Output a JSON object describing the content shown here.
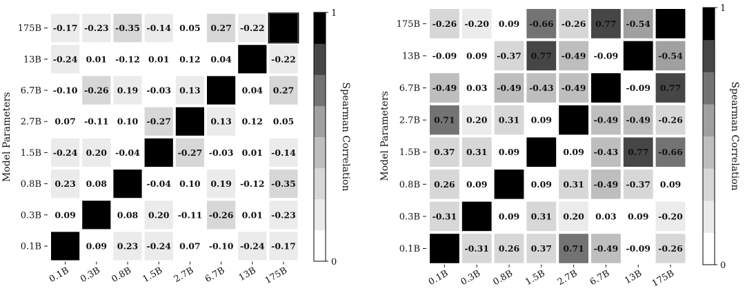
{
  "chart_data": [
    {
      "type": "heatmap",
      "ylabel": "Model Parameters",
      "xlabel": "",
      "categories": [
        "0.1B",
        "0.3B",
        "0.8B",
        "1.5B",
        "2.7B",
        "6.7B",
        "13B",
        "175B"
      ],
      "rows_top_to_bottom": [
        "175B",
        "13B",
        "6.7B",
        "2.7B",
        "1.5B",
        "0.8B",
        "0.3B",
        "0.1B"
      ],
      "values": [
        [
          -0.17,
          -0.23,
          -0.35,
          -0.14,
          0.05,
          0.27,
          -0.22,
          null
        ],
        [
          -0.24,
          0.01,
          -0.12,
          0.01,
          0.12,
          0.04,
          null,
          -0.22
        ],
        [
          -0.1,
          -0.26,
          0.19,
          -0.03,
          0.13,
          null,
          0.04,
          0.27
        ],
        [
          0.07,
          -0.11,
          0.1,
          -0.27,
          null,
          0.13,
          0.12,
          0.05
        ],
        [
          -0.24,
          0.2,
          -0.04,
          null,
          -0.27,
          -0.03,
          0.01,
          -0.14
        ],
        [
          0.23,
          0.08,
          null,
          -0.04,
          0.1,
          0.19,
          -0.12,
          -0.35
        ],
        [
          0.09,
          null,
          0.08,
          0.2,
          -0.11,
          -0.26,
          0.01,
          -0.23
        ],
        [
          null,
          0.09,
          0.23,
          -0.24,
          0.07,
          -0.1,
          -0.24,
          -0.17
        ]
      ],
      "colorbar": {
        "label": "Spearman Correlation",
        "min": 0,
        "max": 1,
        "min_label": "0",
        "max_label": "1",
        "levels": 8
      }
    },
    {
      "type": "heatmap",
      "ylabel": "Model Parameters",
      "xlabel": "",
      "categories": [
        "0.1B",
        "0.3B",
        "0.8B",
        "1.5B",
        "2.7B",
        "6.7B",
        "13B",
        "175B"
      ],
      "rows_top_to_bottom": [
        "175B",
        "13B",
        "6.7B",
        "2.7B",
        "1.5B",
        "0.8B",
        "0.3B",
        "0.1B"
      ],
      "values": [
        [
          -0.26,
          -0.2,
          0.09,
          -0.66,
          -0.26,
          0.77,
          -0.54,
          null
        ],
        [
          -0.09,
          0.09,
          -0.37,
          0.77,
          -0.49,
          -0.09,
          null,
          -0.54
        ],
        [
          -0.49,
          0.03,
          -0.49,
          -0.43,
          -0.49,
          null,
          -0.09,
          0.77
        ],
        [
          0.71,
          0.2,
          0.31,
          0.09,
          null,
          -0.49,
          -0.49,
          -0.26
        ],
        [
          0.37,
          0.31,
          0.09,
          null,
          0.09,
          -0.43,
          0.77,
          -0.66
        ],
        [
          0.26,
          0.09,
          null,
          0.09,
          0.31,
          -0.49,
          -0.37,
          0.09
        ],
        [
          -0.31,
          null,
          0.09,
          0.31,
          0.2,
          0.03,
          0.09,
          -0.2
        ],
        [
          null,
          -0.31,
          0.26,
          0.37,
          0.71,
          -0.49,
          -0.09,
          -0.26
        ]
      ],
      "colorbar": {
        "label": "Spearman Correlation",
        "min": 0,
        "max": 1,
        "min_label": "0",
        "max_label": "1",
        "levels": 8
      }
    }
  ],
  "colors": {
    "diagonal": "#000000",
    "text_dark": "#111111",
    "border": "#000000"
  }
}
